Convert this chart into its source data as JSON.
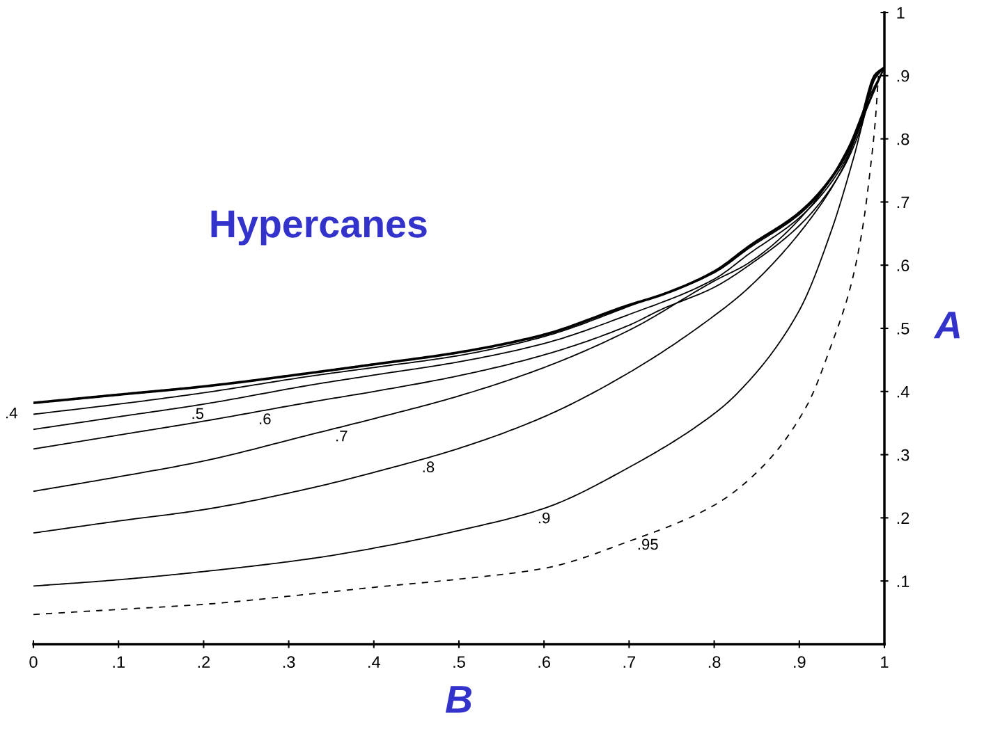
{
  "chart_data": {
    "type": "line",
    "title": "Hypercanes",
    "xlabel": "B",
    "ylabel": "A",
    "xlim": [
      0,
      1
    ],
    "ylim": [
      0,
      1
    ],
    "xticks": [
      {
        "value": 0,
        "label": "0"
      },
      {
        "value": 0.1,
        "label": ".1"
      },
      {
        "value": 0.2,
        "label": ".2"
      },
      {
        "value": 0.3,
        "label": ".3"
      },
      {
        "value": 0.4,
        "label": ".4"
      },
      {
        "value": 0.5,
        "label": ".5"
      },
      {
        "value": 0.6,
        "label": ".6"
      },
      {
        "value": 0.7,
        "label": ".7"
      },
      {
        "value": 0.8,
        "label": ".8"
      },
      {
        "value": 0.9,
        "label": ".9"
      },
      1
    ],
    "yticks": [
      {
        "value": 0.1,
        "label": ".1"
      },
      {
        "value": 0.2,
        "label": ".2"
      },
      {
        "value": 0.3,
        "label": ".3"
      },
      {
        "value": 0.4,
        "label": ".4"
      },
      {
        "value": 0.5,
        "label": ".5"
      },
      {
        "value": 0.6,
        "label": ".6"
      },
      {
        "value": 0.7,
        "label": ".7"
      },
      {
        "value": 0.8,
        "label": ".8"
      },
      {
        "value": 0.9,
        "label": ".9"
      },
      1
    ],
    "grid": false,
    "legend": false,
    "marker": "none",
    "series": [
      {
        "color": "#000000",
        "x": [
          0,
          0.1,
          0.2,
          0.329,
          0.4,
          0.5,
          0.6,
          0.7,
          0.738,
          0.8,
          0.841,
          0.904,
          0.948,
          0.971,
          0.989,
          1
        ],
        "values": [
          0.382,
          0.395,
          0.408,
          0.43,
          0.443,
          0.462,
          0.49,
          0.537,
          0.553,
          0.59,
          0.63,
          0.688,
          0.759,
          0.824,
          0.901,
          0.913
        ]
      },
      {
        "name": ".4",
        "color": "#000000",
        "x": [
          0,
          0.1,
          0.2,
          0.329,
          0.4,
          0.5,
          0.6,
          0.7,
          0.8,
          0.841,
          0.904,
          0.948,
          0.971,
          0.989,
          1
        ],
        "values": [
          0.364,
          0.38,
          0.398,
          0.425,
          0.438,
          0.457,
          0.487,
          0.535,
          0.588,
          0.627,
          0.685,
          0.757,
          0.822,
          0.9,
          0.913
        ]
      },
      {
        "name": ".5",
        "color": "#000000",
        "x": [
          0,
          0.1,
          0.2,
          0.329,
          0.4,
          0.5,
          0.6,
          0.7,
          0.8,
          0.841,
          0.904,
          0.948,
          0.971,
          0.989,
          1
        ],
        "values": [
          0.34,
          0.36,
          0.38,
          0.411,
          0.426,
          0.447,
          0.476,
          0.522,
          0.578,
          0.618,
          0.68,
          0.752,
          0.818,
          0.898,
          0.913
        ]
      },
      {
        "name": ".6",
        "color": "#000000",
        "x": [
          0,
          0.1,
          0.2,
          0.329,
          0.4,
          0.5,
          0.6,
          0.7,
          0.738,
          0.8,
          0.841,
          0.904,
          0.948,
          0.971,
          0.989,
          1
        ],
        "values": [
          0.309,
          0.331,
          0.353,
          0.384,
          0.4,
          0.425,
          0.458,
          0.505,
          0.53,
          0.565,
          0.6,
          0.668,
          0.745,
          0.812,
          0.895,
          0.913
        ]
      },
      {
        "name": ".7",
        "color": "#000000",
        "x": [
          0,
          0.1,
          0.2,
          0.329,
          0.4,
          0.5,
          0.6,
          0.7,
          0.8,
          0.841,
          0.914,
          0.957,
          0.981,
          1
        ],
        "values": [
          0.242,
          0.265,
          0.29,
          0.333,
          0.357,
          0.393,
          0.438,
          0.497,
          0.575,
          0.604,
          0.694,
          0.785,
          0.863,
          0.913
        ]
      },
      {
        "name": ".8",
        "color": "#000000",
        "x": [
          0,
          0.1,
          0.2,
          0.329,
          0.4,
          0.5,
          0.6,
          0.7,
          0.8,
          0.841,
          0.914,
          0.953,
          0.976,
          1
        ],
        "values": [
          0.176,
          0.195,
          0.213,
          0.248,
          0.272,
          0.31,
          0.36,
          0.43,
          0.52,
          0.565,
          0.675,
          0.759,
          0.837,
          0.913
        ]
      },
      {
        "name": ".9",
        "color": "#000000",
        "x": [
          0,
          0.1,
          0.2,
          0.329,
          0.4,
          0.5,
          0.6,
          0.7,
          0.8,
          0.827,
          0.899,
          0.938,
          0.964,
          0.981,
          1
        ],
        "values": [
          0.092,
          0.102,
          0.115,
          0.136,
          0.152,
          0.18,
          0.215,
          0.28,
          0.365,
          0.397,
          0.526,
          0.656,
          0.771,
          0.856,
          0.913
        ]
      },
      {
        "name": ".95",
        "color": "#000000",
        "line_style": "dashed",
        "x": [
          0,
          0.1,
          0.2,
          0.329,
          0.4,
          0.5,
          0.6,
          0.7,
          0.8,
          0.856,
          0.909,
          0.938,
          0.96,
          0.974,
          0.984,
          0.989,
          0.993
        ],
        "values": [
          0.047,
          0.055,
          0.063,
          0.08,
          0.09,
          0.103,
          0.12,
          0.163,
          0.22,
          0.28,
          0.378,
          0.475,
          0.565,
          0.656,
          0.759,
          0.824,
          0.9
        ]
      }
    ]
  }
}
